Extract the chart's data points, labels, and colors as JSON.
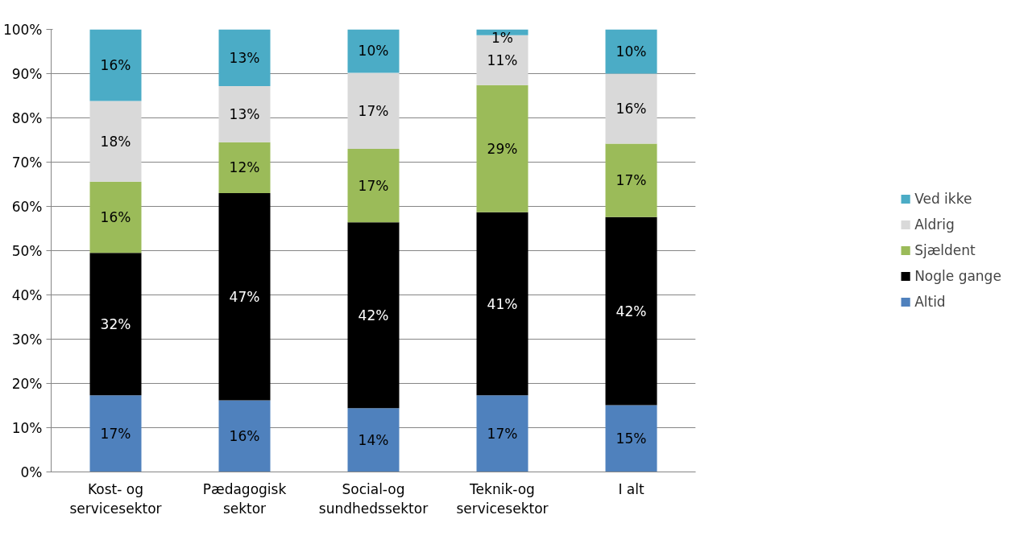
{
  "chart_data": {
    "type": "bar",
    "stacked": true,
    "categories": [
      "Kost- og\nservicesektor",
      "Pædagogisk\nsektor",
      "Social-og\nsundhedssektor",
      "Teknik-og\nservicesektor",
      "I alt"
    ],
    "series": [
      {
        "name": "Altid",
        "color": "#4f81bd",
        "values": [
          17.3,
          16.2,
          14.4,
          17.3,
          15.1
        ],
        "value_labels": [
          "17%",
          "16%",
          "14%",
          "17%",
          "15%"
        ]
      },
      {
        "name": "Nogle gange",
        "color": "#000000",
        "values": [
          32.2,
          46.8,
          42.0,
          41.4,
          42.5
        ],
        "value_labels": [
          "32%",
          "47%",
          "42%",
          "41%",
          "42%"
        ]
      },
      {
        "name": "Sjældent",
        "color": "#9bbb59",
        "values": [
          16.1,
          11.5,
          16.6,
          28.7,
          16.6
        ],
        "value_labels": [
          "16%",
          "12%",
          "17%",
          "29%",
          "17%"
        ]
      },
      {
        "name": "Aldrig",
        "color": "#d9d9d9",
        "values": [
          18.2,
          12.7,
          17.2,
          11.3,
          15.8
        ],
        "value_labels": [
          "18%",
          "13%",
          "17%",
          "11%",
          "16%"
        ]
      },
      {
        "name": "Ved ikke",
        "color": "#4bacc6",
        "values": [
          16.2,
          12.8,
          9.8,
          1.3,
          10.0
        ],
        "value_labels": [
          "16%",
          "13%",
          "10%",
          "1%",
          "10%"
        ]
      }
    ],
    "ylim": [
      0,
      100
    ],
    "yticks": [
      {
        "value": 0,
        "label": "0%"
      },
      {
        "value": 10,
        "label": "10%"
      },
      {
        "value": 20,
        "label": "20%"
      },
      {
        "value": 30,
        "label": "30%"
      },
      {
        "value": 40,
        "label": "40%"
      },
      {
        "value": 50,
        "label": "50%"
      },
      {
        "value": 60,
        "label": "60%"
      },
      {
        "value": 70,
        "label": "70%"
      },
      {
        "value": 80,
        "label": "80%"
      },
      {
        "value": 90,
        "label": "90%"
      },
      {
        "value": 100,
        "label": "100%"
      }
    ],
    "grid": "y",
    "legend": "right"
  }
}
